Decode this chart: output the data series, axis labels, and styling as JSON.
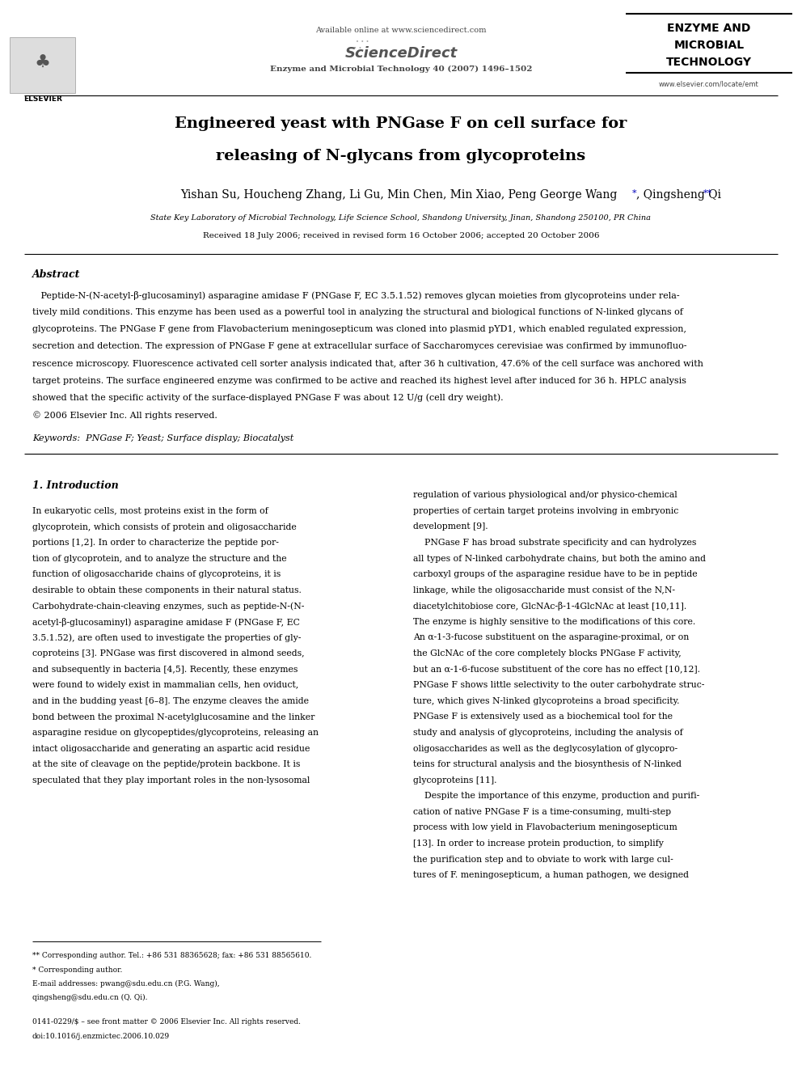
{
  "bg_color": "#ffffff",
  "page_width": 9.92,
  "page_height": 13.23,
  "header": {
    "available_online": "Available online at www.sciencedirect.com",
    "journal_line": "Enzyme and Microbial Technology 40 (2007) 1496–1502",
    "elsevier_text": "ELSEVIER",
    "journal_name_line1": "ENZYME AND",
    "journal_name_line2": "MICROBIAL",
    "journal_name_line3": "TECHNOLOGY",
    "journal_website": "www.elsevier.com/locate/emt"
  },
  "title_line1": "Engineered yeast with PNGase F on cell surface for",
  "title_line2_pre": "releasing of ",
  "title_line2_italic": "N",
  "title_line2_post": "-glycans from glycoproteins",
  "authors_pre": "Yishan Su, Houcheng Zhang, Li Gu, Min Chen, Min Xiao, Peng George Wang",
  "authors_post": ", Qingsheng Qi",
  "affiliation": "State Key Laboratory of Microbial Technology, Life Science School, Shandong University, Jinan, Shandong 250100, PR China",
  "received": "Received 18 July 2006; received in revised form 16 October 2006; accepted 20 October 2006",
  "abstract_title": "Abstract",
  "keywords": "Keywords:  PNGase F; Yeast; Surface display; Biocatalyst",
  "section1_title": "1. Introduction",
  "footnote1": "** Corresponding author. Tel.: +86 531 88365628; fax: +86 531 88565610.",
  "footnote2": "* Corresponding author.",
  "footnote3": "E-mail addresses: pwang@sdu.edu.cn (P.G. Wang),",
  "footnote4": "qingsheng@sdu.edu.cn (Q. Qi).",
  "footer_line1": "0141-0229/$ – see front matter © 2006 Elsevier Inc. All rights reserved.",
  "footer_line2": "doi:10.1016/j.enzmictec.2006.10.029",
  "abstract_lines": [
    "Peptide-N-(N-acetyl-β-glucosaminyl) asparagine amidase F (PNGase F, EC 3.5.1.52) removes glycan moieties from glycoproteins under rela-",
    "tively mild conditions. This enzyme has been used as a powerful tool in analyzing the structural and biological functions of N-linked glycans of",
    "glycoproteins. The PNGase F gene from Flavobacterium meningosepticum was cloned into plasmid pYD1, which enabled regulated expression,",
    "secretion and detection. The expression of PNGase F gene at extracellular surface of Saccharomyces cerevisiae was confirmed by immunofluo-",
    "rescence microscopy. Fluorescence activated cell sorter analysis indicated that, after 36 h cultivation, 47.6% of the cell surface was anchored with",
    "target proteins. The surface engineered enzyme was confirmed to be active and reached its highest level after induced for 36 h. HPLC analysis",
    "showed that the specific activity of the surface-displayed PNGase F was about 12 U/g (cell dry weight).",
    "© 2006 Elsevier Inc. All rights reserved."
  ],
  "col1_lines": [
    "In eukaryotic cells, most proteins exist in the form of",
    "glycoprotein, which consists of protein and oligosaccharide",
    "portions [1,2]. In order to characterize the peptide por-",
    "tion of glycoprotein, and to analyze the structure and the",
    "function of oligosaccharide chains of glycoproteins, it is",
    "desirable to obtain these components in their natural status.",
    "Carbohydrate-chain-cleaving enzymes, such as peptide-N-(N-",
    "acetyl-β-glucosaminyl) asparagine amidase F (PNGase F, EC",
    "3.5.1.52), are often used to investigate the properties of gly-",
    "coproteins [3]. PNGase was first discovered in almond seeds,",
    "and subsequently in bacteria [4,5]. Recently, these enzymes",
    "were found to widely exist in mammalian cells, hen oviduct,",
    "and in the budding yeast [6–8]. The enzyme cleaves the amide",
    "bond between the proximal N-acetylglucosamine and the linker",
    "asparagine residue on glycopeptides/glycoproteins, releasing an",
    "intact oligosaccharide and generating an aspartic acid residue",
    "at the site of cleavage on the peptide/protein backbone. It is",
    "speculated that they play important roles in the non-lysosomal"
  ],
  "col2_lines": [
    "regulation of various physiological and/or physico-chemical",
    "properties of certain target proteins involving in embryonic",
    "development [9].",
    "    PNGase F has broad substrate specificity and can hydrolyzes",
    "all types of N-linked carbohydrate chains, but both the amino and",
    "carboxyl groups of the asparagine residue have to be in peptide",
    "linkage, while the oligosaccharide must consist of the N,N-",
    "diacetylchitobiose core, GlcNAc-β-1-4GlcNAc at least [10,11].",
    "The enzyme is highly sensitive to the modifications of this core.",
    "An α-1-3-fucose substituent on the asparagine-proximal, or on",
    "the GlcNAc of the core completely blocks PNGase F activity,",
    "but an α-1-6-fucose substituent of the core has no effect [10,12].",
    "PNGase F shows little selectivity to the outer carbohydrate struc-",
    "ture, which gives N-linked glycoproteins a broad specificity.",
    "PNGase F is extensively used as a biochemical tool for the",
    "study and analysis of glycoproteins, including the analysis of",
    "oligosaccharides as well as the deglycosylation of glycopro-",
    "teins for structural analysis and the biosynthesis of N-linked",
    "glycoproteins [11].",
    "    Despite the importance of this enzyme, production and purifi-",
    "cation of native PNGase F is a time-consuming, multi-step",
    "process with low yield in Flavobacterium meningosepticum",
    "[13]. In order to increase protein production, to simplify",
    "the purification step and to obviate to work with large cul-",
    "tures of F. meningosepticum, a human pathogen, we designed"
  ]
}
